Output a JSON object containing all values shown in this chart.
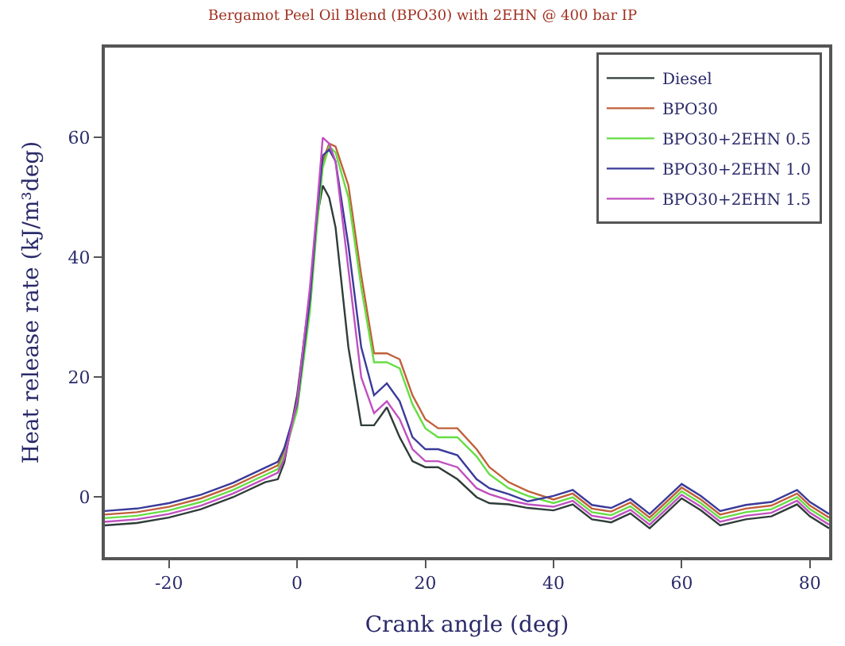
{
  "chart_data": {
    "type": "line",
    "title": "Bergamot Peel Oil Blend (BPO30) with 2EHN @ 400 bar IP",
    "xlabel": "Crank angle (deg)",
    "ylabel": "Heat release rate (kJ/m³deg)",
    "x": [
      -30,
      -25,
      -20,
      -15,
      -10,
      -5,
      -3,
      -2,
      0,
      2,
      3,
      4,
      5,
      6,
      8,
      10,
      12,
      14,
      16,
      18,
      20,
      22,
      25,
      28,
      30,
      33,
      36,
      40,
      43,
      46,
      49,
      52,
      55,
      58,
      60,
      63,
      66,
      70,
      74,
      78,
      80,
      83
    ],
    "series": [
      {
        "name": "Diesel",
        "color": "#2f3d3a",
        "values": [
          -4.7,
          -4.3,
          -3.4,
          -2.0,
          0,
          2.5,
          3.0,
          5.8,
          17,
          34,
          46,
          52,
          50,
          45,
          25,
          12,
          12,
          15,
          10,
          6,
          5,
          5,
          3,
          0,
          -1,
          -1.2,
          -1.8,
          -2.2,
          -1.2,
          -3.7,
          -4.2,
          -2.7,
          -5.2,
          -2.2,
          -0.2,
          -2.2,
          -4.7,
          -3.7,
          -3.2,
          -1.2,
          -3.2,
          -5.2
        ]
      },
      {
        "name": "BPO30",
        "color": "#c0603a",
        "values": [
          -2.9,
          -2.5,
          -1.6,
          -0.2,
          1.8,
          4.3,
          5.3,
          7.6,
          15,
          32,
          45,
          56,
          59,
          58.5,
          52,
          37,
          24,
          24,
          23,
          17,
          13,
          11.5,
          11.5,
          8,
          5,
          2.5,
          1,
          -0.4,
          0.6,
          -1.9,
          -2.4,
          -0.9,
          -3.4,
          -0.4,
          1.6,
          -0.4,
          -2.9,
          -1.9,
          -1.4,
          0.6,
          -1.4,
          -3.4
        ]
      },
      {
        "name": "BPO30+2EHN 0.5",
        "color": "#66dd44",
        "values": [
          -3.5,
          -3.1,
          -2.2,
          -0.8,
          1.2,
          3.7,
          4.7,
          7.0,
          14.5,
          31,
          44,
          55,
          58.5,
          57.5,
          50,
          35,
          22.5,
          22.5,
          21.5,
          15.5,
          11.5,
          10,
          10,
          6.8,
          3.8,
          1.5,
          0.2,
          -1,
          0,
          -2.5,
          -3,
          -1.5,
          -4,
          -1,
          1,
          -1,
          -3.5,
          -2.5,
          -2,
          0,
          -2,
          -4
        ]
      },
      {
        "name": "BPO30+2EHN 1.0",
        "color": "#3a3a9a",
        "values": [
          -2.3,
          -1.9,
          -1.0,
          0.4,
          2.4,
          4.9,
          5.9,
          8.2,
          15.5,
          33,
          46,
          57,
          58,
          56,
          42,
          25,
          17,
          19,
          16,
          10,
          8,
          8,
          7,
          3,
          1.5,
          0.5,
          -0.7,
          0.2,
          1.2,
          -1.3,
          -1.8,
          -0.3,
          -2.8,
          0.2,
          2.2,
          0.2,
          -2.3,
          -1.3,
          -0.8,
          1.2,
          -0.8,
          -2.8
        ]
      },
      {
        "name": "BPO30+2EHN 1.5",
        "color": "#c050c0",
        "values": [
          -4.1,
          -3.7,
          -2.8,
          -1.4,
          0.6,
          3.1,
          4.1,
          6.4,
          16,
          35,
          47,
          60,
          59,
          56,
          38,
          20,
          14,
          16,
          13,
          8,
          6,
          6,
          5,
          1.5,
          0.5,
          -0.5,
          -1.2,
          -1.6,
          -0.6,
          -3.1,
          -3.6,
          -2.1,
          -4.6,
          -1.6,
          0.4,
          -1.6,
          -4.1,
          -3.1,
          -2.6,
          -0.6,
          -2.6,
          -4.6
        ]
      }
    ],
    "xlim": [
      -30,
      83
    ],
    "ylim": [
      -10,
      75
    ],
    "xticks": [
      -20,
      0,
      20,
      40,
      60,
      80
    ],
    "yticks": [
      0,
      20,
      40,
      60
    ],
    "legend": "top right",
    "marker": "none",
    "line_style": "solid"
  }
}
